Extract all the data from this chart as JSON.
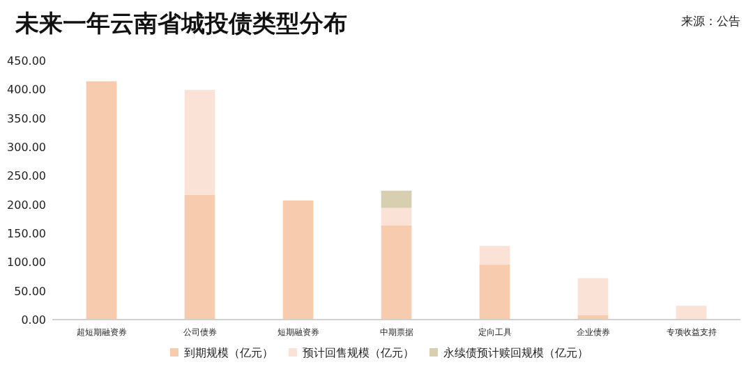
{
  "chart_data": {
    "type": "bar",
    "stacked": true,
    "title": "未来一年云南省城投债类型分布",
    "annotations": [
      "来源：公告"
    ],
    "categories": [
      "超短期融资券",
      "公司债券",
      "短期融资券",
      "中期票据",
      "定向工具",
      "企业债券",
      "专项收益支持"
    ],
    "series": [
      {
        "name": "到期规模（亿元）",
        "color": "#f7cbad",
        "values": [
          414,
          217,
          207,
          164,
          96,
          8,
          null
        ]
      },
      {
        "name": "预计回售规模（亿元）",
        "color": "#fae3d6",
        "values": [
          null,
          182,
          null,
          30,
          32,
          64,
          24
        ]
      },
      {
        "name": "永续债预计赎回规模（亿元）",
        "color": "#d8cfb0",
        "values": [
          null,
          null,
          null,
          30,
          null,
          null,
          null
        ]
      }
    ],
    "ylim": [
      0,
      450
    ],
    "yticks": [
      {
        "value": 0,
        "label": "0.00"
      },
      {
        "value": 50,
        "label": "50.00"
      },
      {
        "value": 100,
        "label": "100.00"
      },
      {
        "value": 150,
        "label": "150.00"
      },
      {
        "value": 200,
        "label": "200.00"
      },
      {
        "value": 250,
        "label": "250.00"
      },
      {
        "value": 300,
        "label": "300.00"
      },
      {
        "value": 350,
        "label": "350.00"
      },
      {
        "value": 400,
        "label": "400.00"
      },
      {
        "value": 450,
        "label": "450.00"
      }
    ],
    "grid": false,
    "legend": "bottom"
  }
}
